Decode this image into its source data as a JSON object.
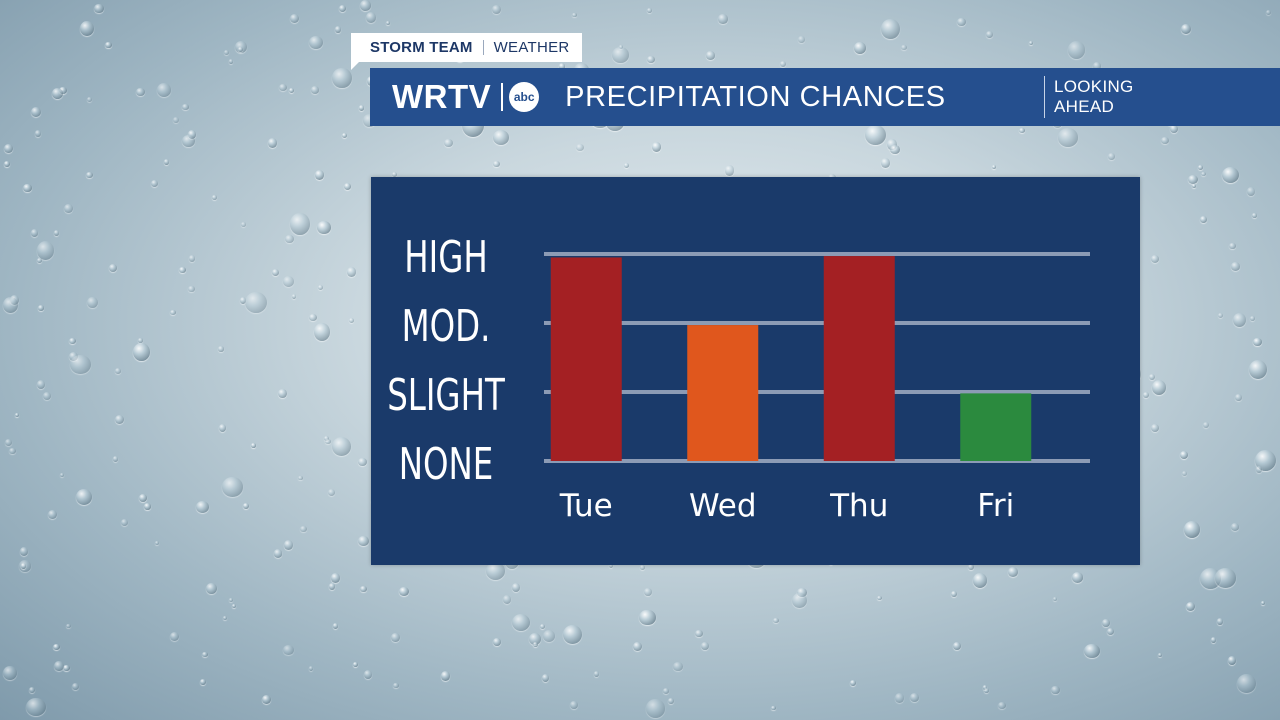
{
  "header": {
    "tag_team": "STORM TEAM",
    "tag_weather": "WEATHER",
    "brand": "WRTV",
    "network_logo": "abc",
    "title": "PRECIPITATION CHANCES",
    "subtitle": "LOOKING\nAHEAD"
  },
  "colors": {
    "panel": "#1a3a6a",
    "titlebar": "#254f8e",
    "high": "#a42023",
    "moderate": "#e0571d",
    "slight": "#2b8a3e",
    "gridline": "#8c9bb5"
  },
  "chart_data": {
    "type": "bar",
    "title": "PRECIPITATION CHANCES",
    "categories": [
      "Tue",
      "Wed",
      "Thu",
      "Fri"
    ],
    "levels": [
      "NONE",
      "SLIGHT",
      "MOD.",
      "HIGH"
    ],
    "y_tick_labels": [
      "HIGH",
      "MOD.",
      "SLIGHT",
      "NONE"
    ],
    "values": [
      2.95,
      1.97,
      2.97,
      0.98
    ],
    "value_labels": [
      "HIGH",
      "MOD.",
      "HIGH",
      "SLIGHT"
    ],
    "bar_colors": [
      "#a42023",
      "#e0571d",
      "#a42023",
      "#2b8a3e"
    ],
    "ylim": [
      0,
      3
    ],
    "grid": true,
    "legend": "none"
  }
}
